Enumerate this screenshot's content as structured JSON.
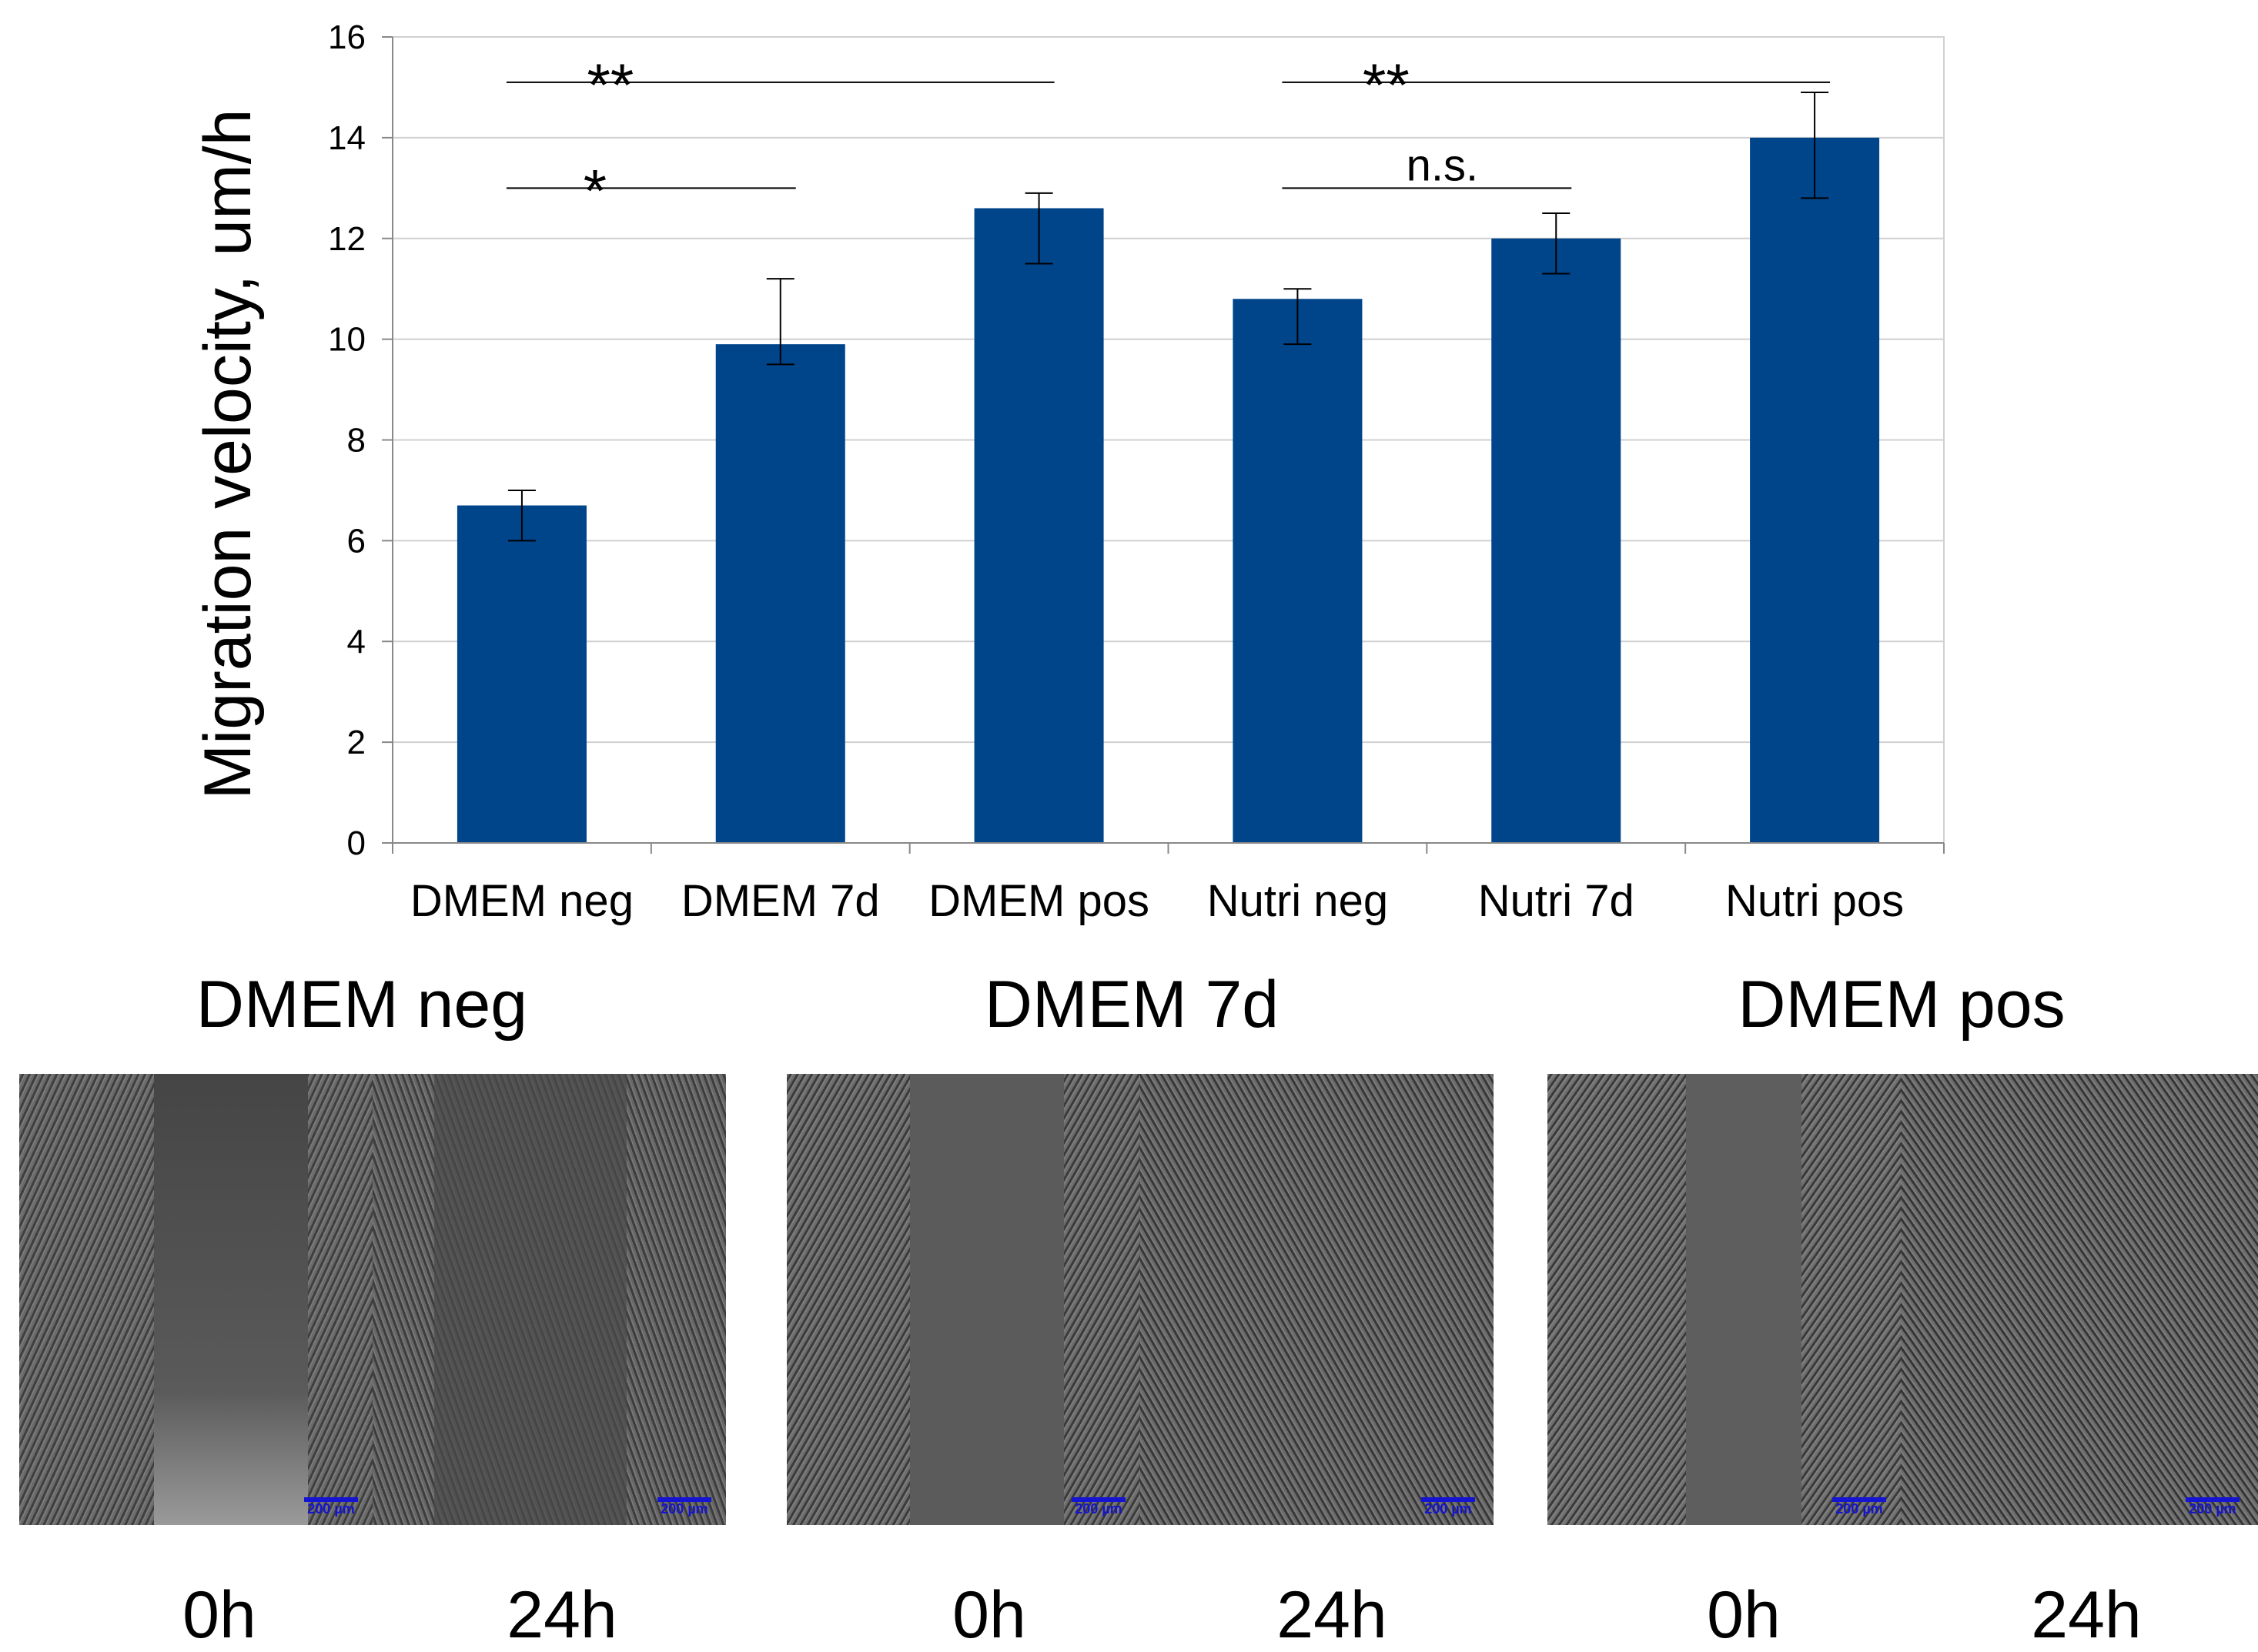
{
  "chart_data": {
    "type": "bar",
    "title": "",
    "xlabel": "",
    "ylabel": "Migration velocity, um/h",
    "ylim": [
      0,
      16
    ],
    "yticks": [
      0,
      2,
      4,
      6,
      8,
      10,
      12,
      14,
      16
    ],
    "grid": true,
    "color": "#00448a",
    "categories": [
      "DMEM neg",
      "DMEM 7d",
      "DMEM pos",
      "Nutri neg",
      "Nutri 7d",
      "Nutri pos"
    ],
    "values": [
      6.7,
      9.9,
      12.6,
      10.8,
      12.0,
      14.0
    ],
    "error_low": [
      6.0,
      9.5,
      11.5,
      9.9,
      11.3,
      12.8
    ],
    "error_high": [
      7.0,
      11.2,
      12.9,
      11.0,
      12.5,
      14.9
    ],
    "significance": [
      {
        "from": 0,
        "to": 2,
        "label": "**",
        "level": 15.1
      },
      {
        "from": 0,
        "to": 1,
        "label": "*",
        "level": 13.0
      },
      {
        "from": 3,
        "to": 5,
        "label": "**",
        "level": 15.1
      },
      {
        "from": 3,
        "to": 4,
        "label": "n.s.",
        "level": 13.0
      }
    ]
  },
  "micrographs": [
    {
      "title": "DMEM neg",
      "times": [
        "0h",
        "24h"
      ],
      "scale": "200 µm"
    },
    {
      "title": "DMEM 7d",
      "times": [
        "0h",
        "24h"
      ],
      "scale": "200 µm"
    },
    {
      "title": "DMEM pos",
      "times": [
        "0h",
        "24h"
      ],
      "scale": "200 µm"
    }
  ],
  "colors": {
    "bar": "#00448a",
    "grid": "#d0d0d0",
    "scalebar": "#1414d2"
  }
}
